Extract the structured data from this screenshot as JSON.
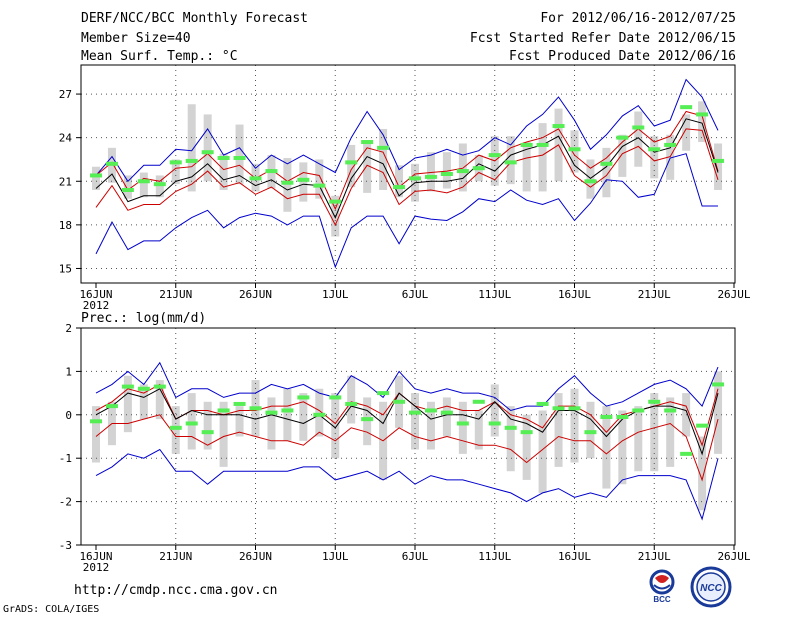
{
  "header": {
    "title": "DERF/NCC/BCC Monthly Forecast",
    "member_size": "Member Size=40",
    "variable": "Mean Surf. Temp.: °C",
    "period": "For 2012/06/16-2012/07/25",
    "started": "Fcst Started Refer Date 2012/06/15",
    "produced": "Fcst Produced Date 2012/06/16"
  },
  "footer": {
    "url": "http://cmdp.ncc.cma.gov.cn",
    "software": "GrADS: COLA/IGES"
  },
  "logos": {
    "bcc": "BCC",
    "ncc": "NCC"
  },
  "colors": {
    "envelope": "#0000cc",
    "spread": "#cc0000",
    "mean": "#000000",
    "box": "#d3d3d3",
    "marker": "#55ee55",
    "grid": "#555555"
  },
  "chart_data": [
    {
      "type": "line",
      "title": "Mean Surf. Temp.: °C",
      "ylim": [
        14,
        29
      ],
      "yticks": [
        15,
        18,
        21,
        24,
        27
      ],
      "xticks": [
        {
          "day": 0,
          "label": "16JUN"
        },
        {
          "day": 5,
          "label": "21JUN"
        },
        {
          "day": 10,
          "label": "26JUN"
        },
        {
          "day": 15,
          "label": "1JUL"
        },
        {
          "day": 20,
          "label": "6JUL"
        },
        {
          "day": 25,
          "label": "11JUL"
        },
        {
          "day": 30,
          "label": "16JUL"
        },
        {
          "day": 35,
          "label": "21JUL"
        },
        {
          "day": 40,
          "label": "26JUL"
        }
      ],
      "year_label": "2012",
      "x": [
        0,
        1,
        2,
        3,
        4,
        5,
        6,
        7,
        8,
        9,
        10,
        11,
        12,
        13,
        14,
        15,
        16,
        17,
        18,
        19,
        20,
        21,
        22,
        23,
        24,
        25,
        26,
        27,
        28,
        29,
        30,
        31,
        32,
        33,
        34,
        35,
        36,
        37,
        38,
        39
      ],
      "series": [
        {
          "name": "ensemble max",
          "color": "#0000cc",
          "values": [
            21.4,
            22.7,
            21.0,
            22.1,
            22.1,
            23.2,
            23.1,
            24.6,
            22.8,
            23.3,
            21.9,
            22.8,
            22.2,
            22.8,
            22.2,
            21.6,
            24.0,
            25.8,
            24.2,
            21.8,
            22.6,
            22.8,
            23.2,
            22.8,
            23.1,
            24.0,
            23.5,
            24.8,
            25.6,
            26.8,
            25.2,
            23.2,
            24.2,
            25.5,
            26.2,
            24.8,
            25.2,
            28.0,
            26.8,
            24.5
          ]
        },
        {
          "name": "upper spread",
          "color": "#cc0000",
          "values": [
            21.4,
            22.3,
            20.4,
            21.2,
            21.0,
            21.9,
            22.0,
            22.9,
            21.8,
            22.1,
            21.2,
            21.8,
            21.0,
            21.6,
            21.4,
            19.1,
            21.8,
            23.3,
            23.0,
            20.6,
            21.5,
            21.6,
            21.7,
            21.9,
            22.8,
            22.4,
            23.3,
            23.7,
            24.0,
            24.6,
            22.8,
            21.9,
            22.6,
            23.7,
            24.6,
            23.7,
            24.1,
            25.8,
            25.5,
            21.7
          ]
        },
        {
          "name": "ensemble mean",
          "color": "#000000",
          "values": [
            20.5,
            21.5,
            19.6,
            20.0,
            20.0,
            21.0,
            21.3,
            22.2,
            21.1,
            21.4,
            20.7,
            21.1,
            20.4,
            20.8,
            20.7,
            18.5,
            21.2,
            22.7,
            22.2,
            20.0,
            20.9,
            21.0,
            21.0,
            21.2,
            22.2,
            21.7,
            22.8,
            23.2,
            23.5,
            24.1,
            22.1,
            21.2,
            22.0,
            23.4,
            24.0,
            23.0,
            23.3,
            25.3,
            25.0,
            21.6
          ]
        },
        {
          "name": "lower spread",
          "color": "#cc0000",
          "values": [
            19.2,
            20.7,
            19.0,
            19.4,
            19.4,
            20.3,
            20.8,
            21.7,
            20.6,
            20.9,
            20.1,
            20.6,
            19.8,
            20.1,
            20.1,
            18.0,
            20.5,
            22.1,
            21.6,
            19.4,
            20.3,
            20.4,
            20.2,
            20.6,
            21.6,
            21.1,
            22.3,
            22.6,
            22.8,
            23.5,
            21.4,
            20.6,
            21.4,
            22.9,
            23.4,
            22.4,
            22.7,
            24.6,
            24.5,
            21.1
          ]
        },
        {
          "name": "ensemble min",
          "color": "#0000cc",
          "values": [
            16.0,
            18.2,
            16.3,
            16.9,
            16.9,
            17.8,
            18.5,
            19.0,
            17.8,
            18.5,
            18.8,
            18.6,
            18.0,
            18.6,
            18.6,
            15.1,
            17.8,
            18.6,
            18.6,
            16.7,
            18.6,
            18.4,
            18.3,
            18.9,
            19.8,
            19.6,
            20.4,
            19.7,
            19.4,
            19.8,
            18.3,
            19.5,
            21.1,
            21.0,
            19.9,
            20.1,
            22.6,
            22.9,
            19.3,
            19.3
          ]
        }
      ],
      "box_low": [
        20.4,
        20.9,
        19.8,
        19.9,
        19.9,
        20.8,
        20.3,
        21.0,
        20.4,
        20.8,
        20.3,
        20.5,
        18.9,
        19.6,
        19.8,
        17.2,
        20.6,
        20.2,
        20.4,
        19.9,
        19.6,
        20.3,
        20.5,
        20.3,
        21.0,
        20.7,
        20.8,
        20.3,
        20.3,
        21.0,
        21.6,
        19.8,
        19.9,
        21.3,
        22.0,
        21.2,
        21.1,
        23.1,
        23.7,
        20.4
      ],
      "box_high": [
        22.0,
        23.3,
        21.4,
        21.6,
        21.4,
        22.5,
        26.3,
        25.6,
        22.9,
        24.9,
        22.2,
        22.8,
        22.6,
        22.3,
        22.5,
        20.0,
        23.5,
        23.6,
        24.6,
        22.1,
        22.2,
        23.0,
        23.0,
        23.6,
        22.8,
        24.1,
        24.1,
        23.7,
        25.0,
        26.0,
        24.5,
        22.5,
        23.3,
        24.2,
        25.8,
        24.1,
        24.2,
        25.6,
        26.5,
        23.6
      ],
      "markers": [
        21.4,
        22.2,
        20.4,
        21.0,
        20.8,
        22.3,
        22.4,
        23.0,
        22.6,
        22.6,
        21.2,
        21.7,
        20.9,
        21.1,
        20.7,
        19.6,
        22.3,
        23.7,
        23.3,
        20.6,
        21.2,
        21.3,
        21.5,
        21.7,
        21.9,
        22.8,
        22.3,
        23.5,
        23.5,
        24.8,
        23.2,
        21.0,
        22.2,
        24.0,
        24.7,
        23.2,
        23.5,
        26.1,
        25.6,
        22.4
      ]
    },
    {
      "type": "line",
      "title": "Prec.: log(mm/d)",
      "ylim": [
        -3,
        2
      ],
      "yticks": [
        -3,
        -2,
        -1,
        0,
        1,
        2
      ],
      "xticks": [
        {
          "day": 0,
          "label": "16JUN"
        },
        {
          "day": 5,
          "label": "21JUN"
        },
        {
          "day": 10,
          "label": "26JUN"
        },
        {
          "day": 15,
          "label": "1JUL"
        },
        {
          "day": 20,
          "label": "6JUL"
        },
        {
          "day": 25,
          "label": "11JUL"
        },
        {
          "day": 30,
          "label": "16JUL"
        },
        {
          "day": 35,
          "label": "21JUL"
        },
        {
          "day": 40,
          "label": "26JUL"
        }
      ],
      "year_label": "2012",
      "x": [
        0,
        1,
        2,
        3,
        4,
        5,
        6,
        7,
        8,
        9,
        10,
        11,
        12,
        13,
        14,
        15,
        16,
        17,
        18,
        19,
        20,
        21,
        22,
        23,
        24,
        25,
        26,
        27,
        28,
        29,
        30,
        31,
        32,
        33,
        34,
        35,
        36,
        37,
        38,
        39
      ],
      "series": [
        {
          "name": "ensemble max",
          "color": "#0000cc",
          "values": [
            0.5,
            0.7,
            1.0,
            0.7,
            1.2,
            0.4,
            0.6,
            0.6,
            0.4,
            0.5,
            0.5,
            0.7,
            0.6,
            0.7,
            0.5,
            0.4,
            0.9,
            0.7,
            0.4,
            1.0,
            0.6,
            0.5,
            0.6,
            0.5,
            0.5,
            0.4,
            0.1,
            0.2,
            0.2,
            0.6,
            0.9,
            0.5,
            0.2,
            0.3,
            0.5,
            0.7,
            0.8,
            0.6,
            0.2,
            1.1
          ]
        },
        {
          "name": "upper spread",
          "color": "#cc0000",
          "values": [
            0.1,
            0.3,
            0.6,
            0.5,
            0.7,
            -0.1,
            0.1,
            0.1,
            0.0,
            0.1,
            0.1,
            0.2,
            0.2,
            0.3,
            0.1,
            -0.2,
            0.3,
            0.2,
            0.0,
            0.5,
            0.2,
            0.1,
            0.2,
            0.1,
            0.1,
            0.3,
            0.0,
            -0.1,
            -0.3,
            0.2,
            0.2,
            0.0,
            -0.4,
            0.0,
            0.1,
            0.2,
            0.3,
            0.2,
            -0.7,
            0.6
          ]
        },
        {
          "name": "ensemble mean",
          "color": "#000000",
          "values": [
            0.0,
            0.2,
            0.5,
            0.4,
            0.6,
            -0.1,
            0.1,
            0.0,
            0.0,
            0.0,
            -0.1,
            0.0,
            -0.1,
            -0.2,
            0.0,
            -0.3,
            0.2,
            0.1,
            -0.2,
            0.5,
            0.2,
            -0.1,
            0.0,
            0.0,
            -0.1,
            0.3,
            -0.1,
            -0.2,
            -0.4,
            0.1,
            0.1,
            -0.1,
            -0.5,
            -0.1,
            0.1,
            0.2,
            0.2,
            0.1,
            -0.9,
            0.5
          ]
        },
        {
          "name": "lower spread",
          "color": "#cc0000",
          "values": [
            -0.5,
            -0.2,
            -0.2,
            -0.1,
            0.0,
            -0.5,
            -0.5,
            -0.7,
            -0.5,
            -0.4,
            -0.5,
            -0.6,
            -0.6,
            -0.7,
            -0.4,
            -0.6,
            -0.3,
            -0.4,
            -0.6,
            -0.3,
            -0.5,
            -0.6,
            -0.5,
            -0.6,
            -0.7,
            -0.7,
            -0.8,
            -1.1,
            -0.8,
            -0.5,
            -0.6,
            -0.6,
            -0.9,
            -0.6,
            -0.4,
            -0.3,
            -0.2,
            -0.5,
            -1.5,
            -0.1
          ]
        },
        {
          "name": "ensemble min",
          "color": "#0000cc",
          "values": [
            -1.4,
            -1.2,
            -0.9,
            -1.0,
            -0.8,
            -1.3,
            -1.3,
            -1.6,
            -1.3,
            -1.3,
            -1.3,
            -1.3,
            -1.3,
            -1.2,
            -1.2,
            -1.5,
            -1.4,
            -1.3,
            -1.5,
            -1.3,
            -1.6,
            -1.4,
            -1.5,
            -1.5,
            -1.6,
            -1.7,
            -1.8,
            -2.0,
            -1.8,
            -1.7,
            -1.9,
            -1.8,
            -1.9,
            -1.5,
            -1.4,
            -1.4,
            -1.4,
            -1.5,
            -2.4,
            -1.0
          ]
        }
      ],
      "box_low": [
        -1.1,
        -0.7,
        -0.4,
        -0.1,
        -0.1,
        -0.9,
        -0.8,
        -0.8,
        -1.2,
        -0.5,
        -0.5,
        -0.8,
        -0.6,
        -0.6,
        -0.5,
        -1.0,
        -0.2,
        -0.7,
        -1.5,
        -0.3,
        -0.8,
        -0.8,
        -0.5,
        -0.9,
        -0.8,
        -0.5,
        -1.3,
        -1.5,
        -1.8,
        -1.2,
        -1.1,
        -1.0,
        -1.7,
        -1.6,
        -1.3,
        -1.3,
        -1.2,
        -0.5,
        -2.2,
        -0.9
      ],
      "box_high": [
        0.2,
        0.3,
        0.9,
        0.7,
        0.8,
        0.2,
        0.5,
        0.3,
        0.3,
        0.2,
        0.8,
        0.4,
        0.6,
        0.5,
        0.6,
        0.5,
        0.9,
        0.4,
        0.3,
        0.9,
        0.5,
        0.3,
        0.4,
        0.3,
        0.1,
        0.7,
        0.2,
        0.0,
        0.1,
        0.5,
        0.6,
        0.3,
        0.2,
        0.1,
        0.2,
        0.5,
        0.4,
        0.5,
        -0.5,
        1.0
      ],
      "markers": [
        -0.15,
        0.2,
        0.65,
        0.6,
        0.65,
        -0.3,
        -0.2,
        -0.4,
        0.1,
        0.25,
        0.15,
        0.05,
        0.1,
        0.4,
        0.0,
        0.4,
        0.25,
        -0.1,
        0.5,
        0.3,
        0.05,
        0.1,
        0.05,
        -0.2,
        0.3,
        -0.2,
        -0.3,
        -0.4,
        0.25,
        0.15,
        0.15,
        -0.4,
        -0.05,
        -0.05,
        0.1,
        0.3,
        0.1,
        -0.9,
        -0.25,
        0.7
      ]
    }
  ]
}
